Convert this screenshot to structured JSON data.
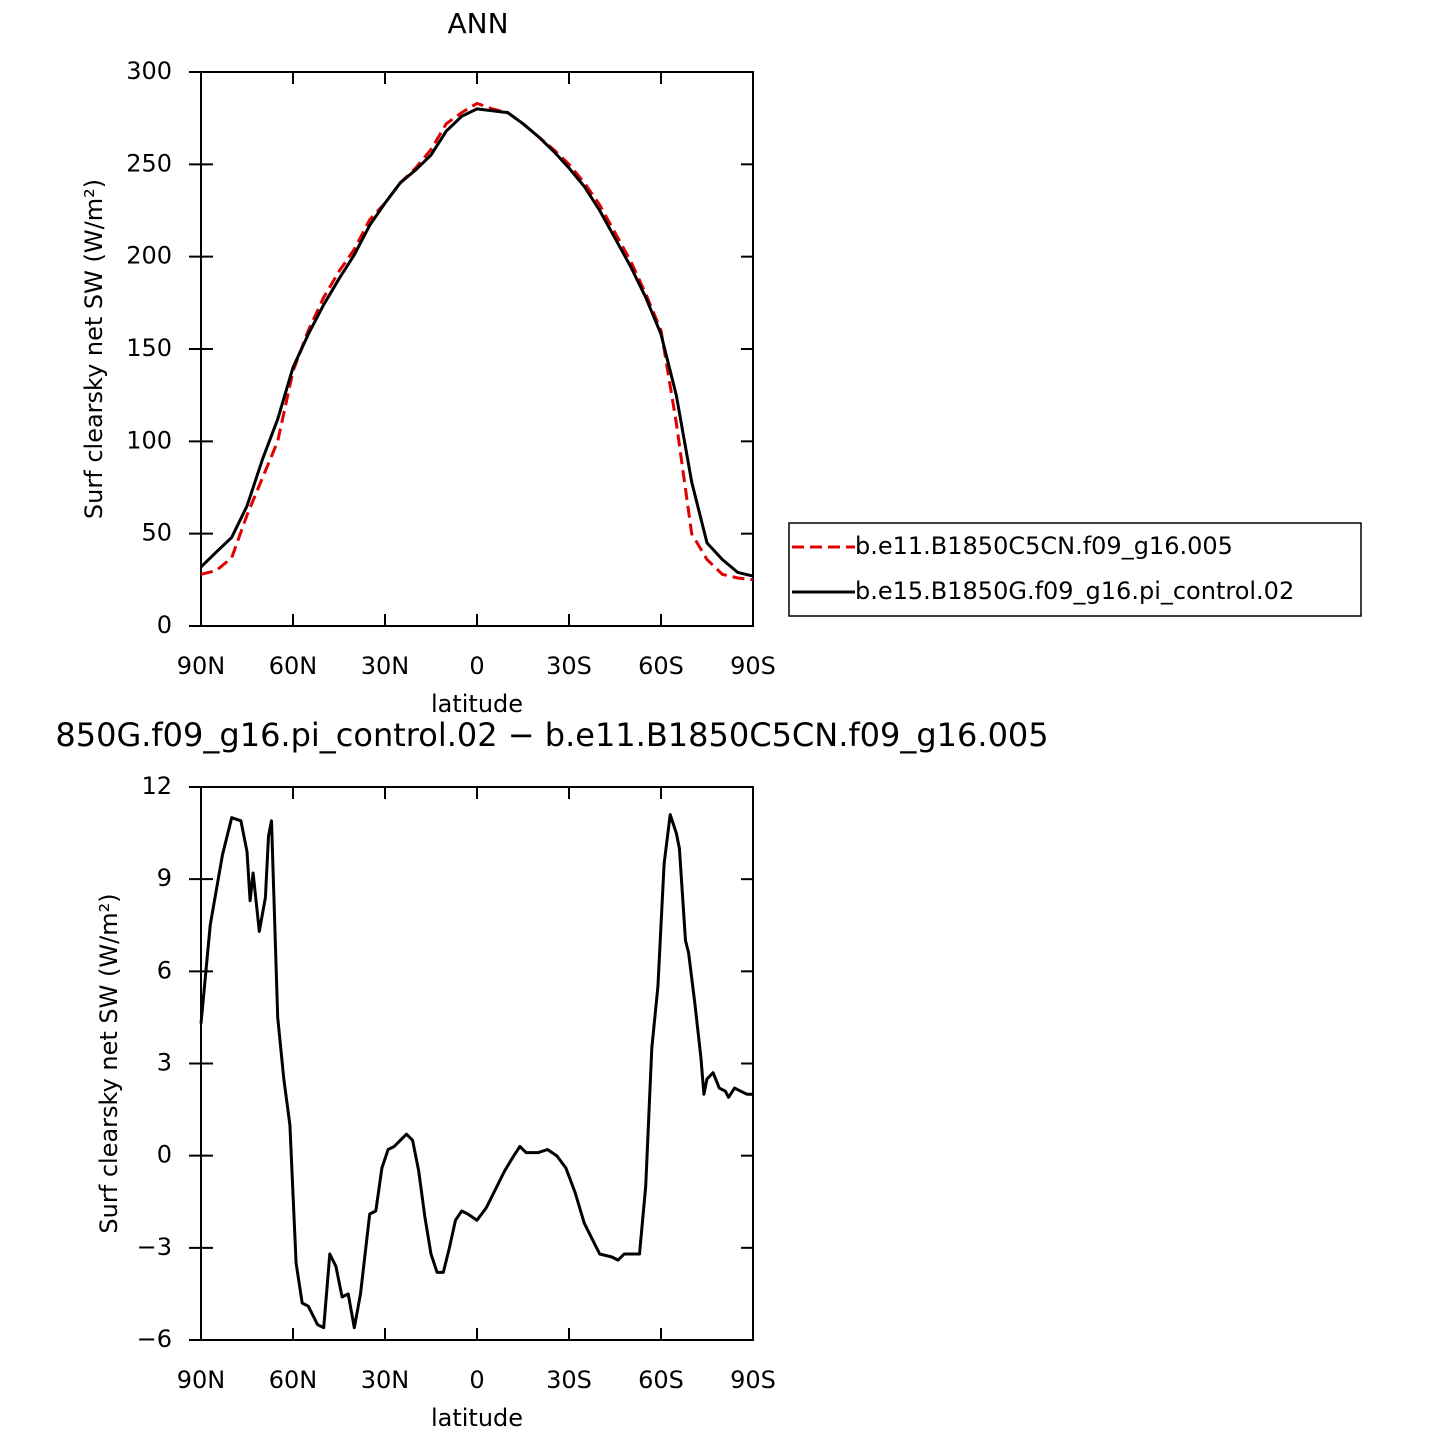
{
  "chart_data": [
    {
      "type": "line",
      "title": "ANN",
      "xlabel": "latitude",
      "ylabel": "Surf clearsky net SW (W/m²)",
      "x": [
        90,
        85,
        80,
        75,
        70,
        65,
        60,
        55,
        50,
        45,
        40,
        35,
        30,
        25,
        20,
        15,
        10,
        5,
        0,
        -5,
        -10,
        -15,
        -20,
        -25,
        -30,
        -35,
        -40,
        -45,
        -50,
        -55,
        -60,
        -65,
        -70,
        -75,
        -80,
        -85,
        -90
      ],
      "xlim": [
        90,
        -90
      ],
      "xticks": [
        {
          "value": 90,
          "label": "90N"
        },
        {
          "value": 60,
          "label": "60N"
        },
        {
          "value": 30,
          "label": "30N"
        },
        0,
        {
          "value": -30,
          "label": "30S"
        },
        {
          "value": -60,
          "label": "60S"
        },
        {
          "value": -90,
          "label": "90S"
        }
      ],
      "ylim": [
        0,
        300
      ],
      "yticks": [
        0,
        50,
        100,
        150,
        200,
        250,
        300
      ],
      "legend": "right",
      "series": [
        {
          "name": "b.e11.B1850C5CN.f09_g16.005",
          "color": "#e00000",
          "dash": true,
          "values": [
            28,
            30,
            37,
            60,
            80,
            100,
            138,
            160,
            178,
            192,
            204,
            220,
            229,
            240,
            248,
            258,
            272,
            278,
            283,
            280,
            278,
            272,
            265,
            258,
            250,
            240,
            228,
            213,
            198,
            180,
            160,
            110,
            50,
            36,
            28,
            26,
            25
          ]
        },
        {
          "name": "b.e15.B1850G.f09_g16.pi_control.02",
          "color": "#000000",
          "dash": false,
          "values": [
            32,
            40,
            48,
            65,
            90,
            112,
            140,
            158,
            174,
            188,
            201,
            217,
            229,
            240,
            247,
            255,
            268,
            276,
            280,
            279,
            278,
            272,
            265,
            257,
            248,
            238,
            225,
            210,
            195,
            178,
            158,
            125,
            78,
            45,
            36,
            29,
            27
          ]
        }
      ]
    },
    {
      "type": "line",
      "title": "850G.f09_g16.pi_control.02 − b.e11.B1850C5CN.f09_g16.005",
      "xlabel": "latitude",
      "ylabel": "Surf clearsky net SW (W/m²)",
      "x": [
        90,
        87,
        83,
        80,
        77,
        75,
        74,
        73,
        71,
        69,
        68,
        67,
        65,
        63,
        61,
        59,
        57,
        55,
        52,
        50,
        48,
        46,
        44,
        42,
        40,
        38,
        35,
        33,
        31,
        29,
        27,
        25,
        23,
        21,
        19,
        17,
        15,
        13,
        11,
        9,
        7,
        5,
        3,
        0,
        -3,
        -6,
        -9,
        -12,
        -14,
        -16,
        -20,
        -23,
        -26,
        -29,
        -32,
        -35,
        -38,
        -40,
        -44,
        -46,
        -48,
        -50,
        -53,
        -55,
        -57,
        -59,
        -61,
        -63,
        -65,
        -66,
        -68,
        -69,
        -71,
        -73,
        -74,
        -75,
        -77,
        -79,
        -81,
        -82,
        -84,
        -86,
        -88,
        -90
      ],
      "xlim": [
        90,
        -90
      ],
      "xticks": [
        {
          "value": 90,
          "label": "90N"
        },
        {
          "value": 60,
          "label": "60N"
        },
        {
          "value": 30,
          "label": "30N"
        },
        0,
        {
          "value": -30,
          "label": "30S"
        },
        {
          "value": -60,
          "label": "60S"
        },
        {
          "value": -90,
          "label": "90S"
        }
      ],
      "ylim": [
        -6,
        12
      ],
      "yticks": [
        {
          "value": -6,
          "label": "−6"
        },
        {
          "value": -3,
          "label": "−3"
        },
        0,
        3,
        6,
        9,
        12
      ],
      "color": "#000000",
      "values": [
        4.3,
        7.5,
        9.8,
        11,
        10.9,
        9.9,
        8.3,
        9.2,
        7.3,
        8.4,
        10.4,
        10.9,
        4.5,
        2.5,
        1,
        -3.5,
        -4.8,
        -4.9,
        -5.5,
        -5.6,
        -3.2,
        -3.6,
        -4.6,
        -4.5,
        -5.6,
        -4.5,
        -1.9,
        -1.8,
        -0.4,
        0.2,
        0.3,
        0.5,
        0.7,
        0.5,
        -0.5,
        -2,
        -3.2,
        -3.8,
        -3.8,
        -3.0,
        -2.1,
        -1.8,
        -1.9,
        -2.1,
        -1.7,
        -1.1,
        -0.5,
        0,
        0.3,
        0.1,
        0.1,
        0.2,
        0,
        -0.4,
        -1.2,
        -2.2,
        -2.8,
        -3.2,
        -3.3,
        -3.4,
        -3.2,
        -3.2,
        -3.2,
        -1,
        3.5,
        5.5,
        9.5,
        11.1,
        10.5,
        10.0,
        7,
        6.6,
        5,
        3.2,
        2.0,
        2.5,
        2.7,
        2.2,
        2.1,
        1.9,
        2.2,
        2.1,
        2.0,
        2.0
      ]
    }
  ]
}
